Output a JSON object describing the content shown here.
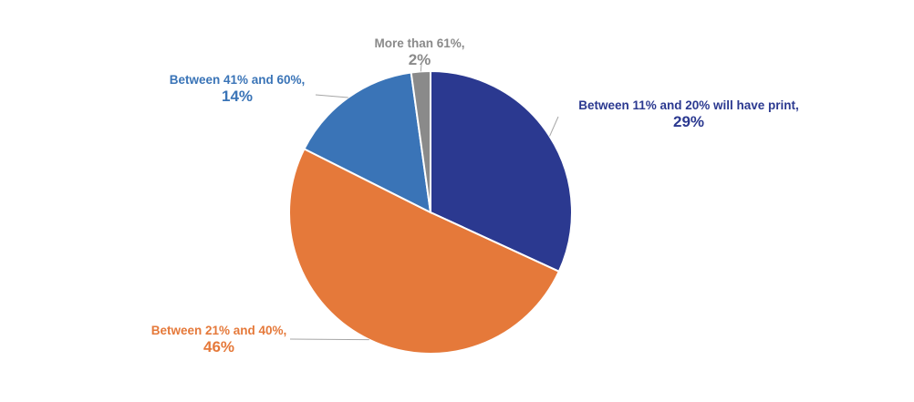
{
  "chart_data": {
    "type": "pie",
    "title": "",
    "start_angle_deg": 0,
    "direction": "clockwise",
    "slices": [
      {
        "name": "Between 11% and 20% will have print",
        "value": 29,
        "label": "29%",
        "color": "#2B3990"
      },
      {
        "name": "Between 21% and 40%",
        "value": 46,
        "label": "46%",
        "color": "#E5793A"
      },
      {
        "name": "Between 41% and 60%",
        "value": 14,
        "label": "14%",
        "color": "#3A74B7"
      },
      {
        "name": "More than 61%",
        "value": 2,
        "label": "2%",
        "color": "#8A8A8A"
      }
    ],
    "legend": "none"
  }
}
